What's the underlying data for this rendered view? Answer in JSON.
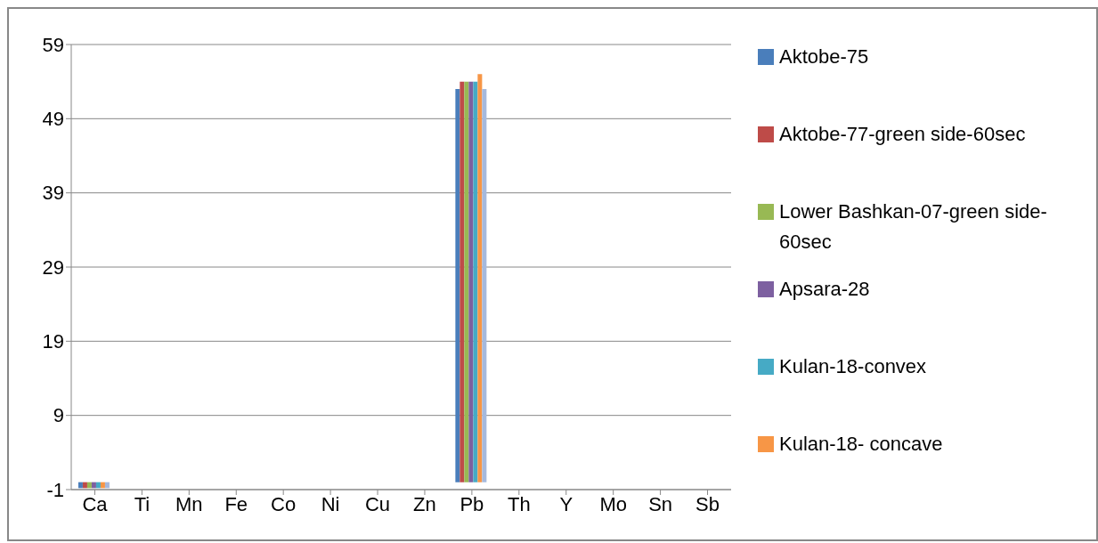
{
  "chart_data": {
    "type": "bar",
    "categories": [
      "Ca",
      "Ti",
      "Mn",
      "Fe",
      "Co",
      "Ni",
      "Cu",
      "Zn",
      "Pb",
      "Th",
      "Y",
      "Mo",
      "Sn",
      "Sb"
    ],
    "series": [
      {
        "name": "Aktobe-75",
        "color": "#4a7ebb",
        "values": [
          -0.8,
          null,
          null,
          null,
          null,
          null,
          null,
          null,
          53,
          null,
          null,
          null,
          null,
          null
        ]
      },
      {
        "name": "Aktobe-77-green side-60sec",
        "color": "#be4b48",
        "values": [
          -0.8,
          null,
          null,
          null,
          null,
          null,
          null,
          null,
          54,
          null,
          null,
          null,
          null,
          null
        ]
      },
      {
        "name": "Lower Bashkan-07-green side-60sec",
        "color": "#98b954",
        "values": [
          -0.8,
          null,
          null,
          null,
          null,
          null,
          null,
          null,
          54,
          null,
          null,
          null,
          null,
          null
        ]
      },
      {
        "name": "Apsara-28",
        "color": "#7d60a0",
        "values": [
          -0.8,
          null,
          null,
          null,
          null,
          null,
          null,
          null,
          54,
          null,
          null,
          null,
          null,
          null
        ]
      },
      {
        "name": "Kulan-18-convex",
        "color": "#46aac5",
        "values": [
          -0.8,
          null,
          null,
          null,
          null,
          null,
          null,
          null,
          54,
          null,
          null,
          null,
          null,
          null
        ]
      },
      {
        "name": "Kulan-18- concave",
        "color": "#f79646",
        "values": [
          -0.8,
          null,
          null,
          null,
          null,
          null,
          null,
          null,
          55,
          null,
          null,
          null,
          null,
          null
        ]
      },
      {
        "color": "#a5b9dd",
        "values": [
          -0.8,
          null,
          null,
          null,
          null,
          null,
          null,
          null,
          53,
          null,
          null,
          null,
          null,
          null
        ]
      }
    ],
    "ylim": [
      -1,
      59
    ],
    "yticks": [
      -1,
      9,
      19,
      29,
      39,
      49,
      59
    ],
    "grid": "y",
    "legend": "right"
  }
}
